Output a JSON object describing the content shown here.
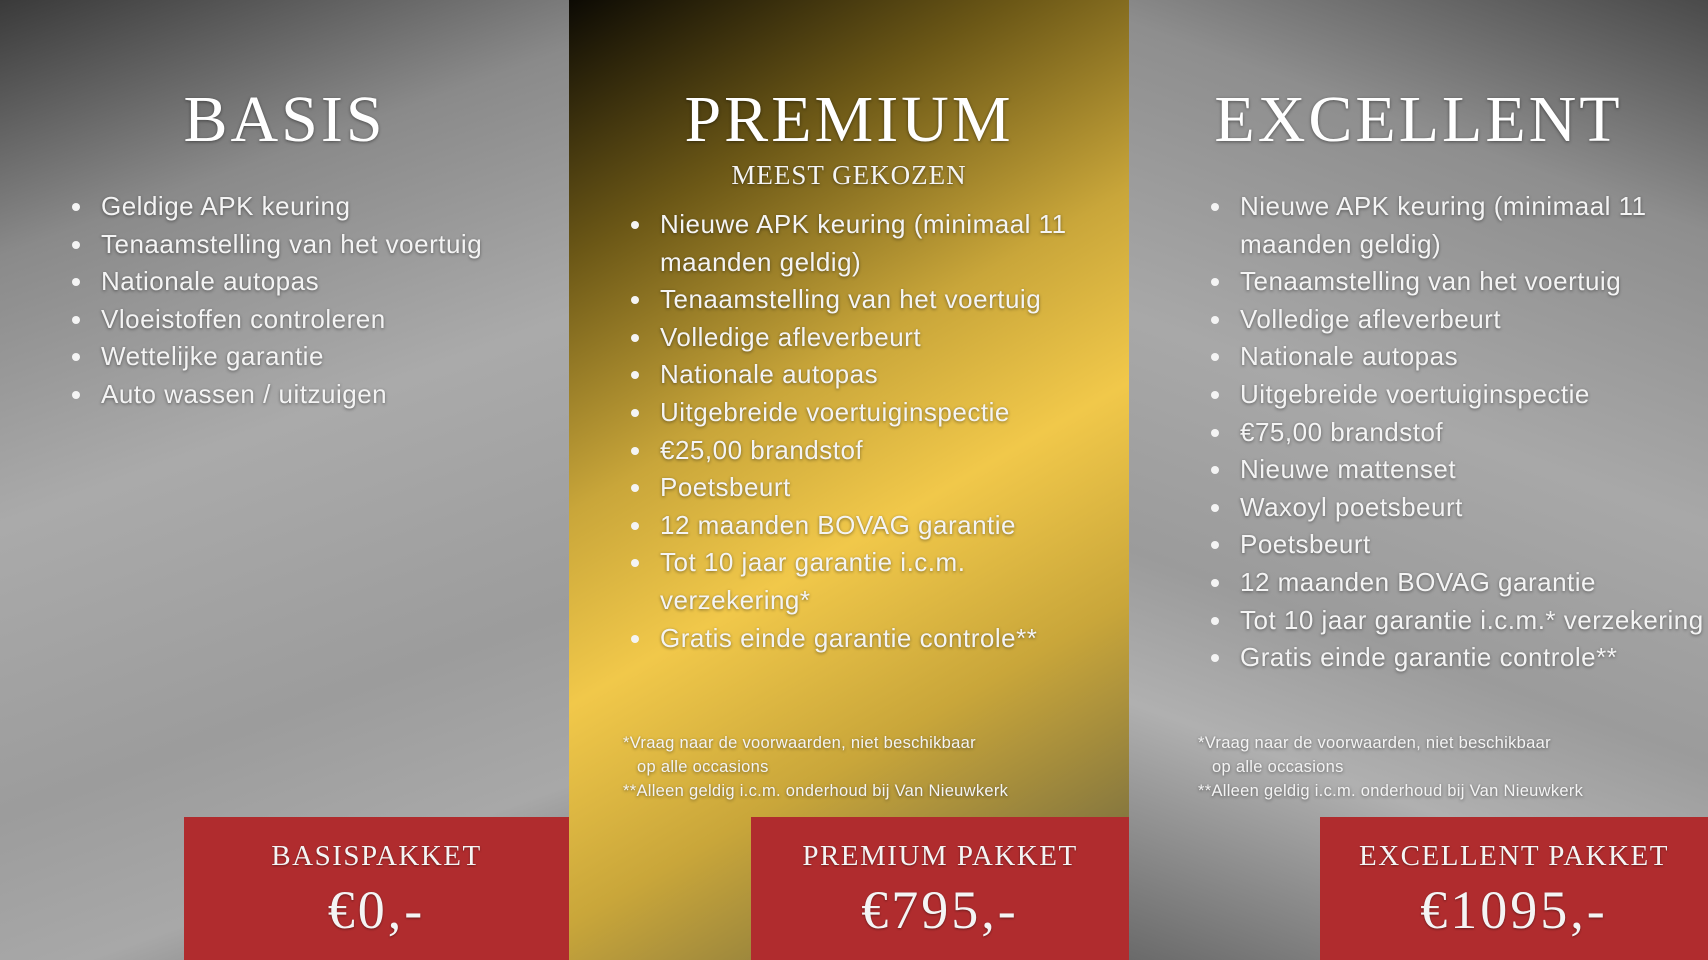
{
  "colors": {
    "accent_red": "#b02c2e",
    "gold": "#f1c84a",
    "silver": "#a8a8a8"
  },
  "packages": [
    {
      "title": "BASIS",
      "features": [
        "Geldige APK keuring",
        "Tenaamstelling van het voertuig",
        "Nationale autopas",
        "Vloeistoffen controleren",
        "Wettelijke garantie",
        "Auto wassen / uitzuigen"
      ],
      "price_label": "BASISPAKKET",
      "price": "€0,-"
    },
    {
      "title": "PREMIUM",
      "subtitle": "MEEST GEKOZEN",
      "features": [
        "Nieuwe APK keuring (minimaal 11 maanden geldig)",
        "Tenaamstelling van het voertuig",
        "Volledige afleverbeurt",
        "Nationale autopas",
        "Uitgebreide voertuiginspectie",
        "€25,00 brandstof",
        "Poetsbeurt",
        "12 maanden BOVAG garantie",
        "Tot 10 jaar garantie i.c.m. verzekering*",
        "Gratis einde garantie controle**"
      ],
      "note1": "*Vraag naar de voorwaarden, niet beschikbaar",
      "note1b": "op alle occasions",
      "note2": "**Alleen geldig i.c.m. onderhoud bij Van Nieuwkerk",
      "price_label": "PREMIUM PAKKET",
      "price": "€795,-"
    },
    {
      "title": "EXCELLENT",
      "features": [
        "Nieuwe APK keuring (minimaal 11 maanden geldig)",
        "Tenaamstelling van het voertuig",
        "Volledige afleverbeurt",
        "Nationale autopas",
        "Uitgebreide voertuiginspectie",
        "€75,00 brandstof",
        "Nieuwe mattenset",
        "Waxoyl poetsbeurt",
        "Poetsbeurt",
        "12 maanden BOVAG garantie",
        "Tot 10 jaar garantie i.c.m.* verzekering",
        "Gratis einde garantie controle**"
      ],
      "note1": "*Vraag naar de voorwaarden, niet beschikbaar",
      "note1b": "op alle occasions",
      "note2": "**Alleen geldig i.c.m. onderhoud bij Van Nieuwkerk",
      "price_label": "EXCELLENT PAKKET",
      "price": "€1095,-"
    }
  ]
}
